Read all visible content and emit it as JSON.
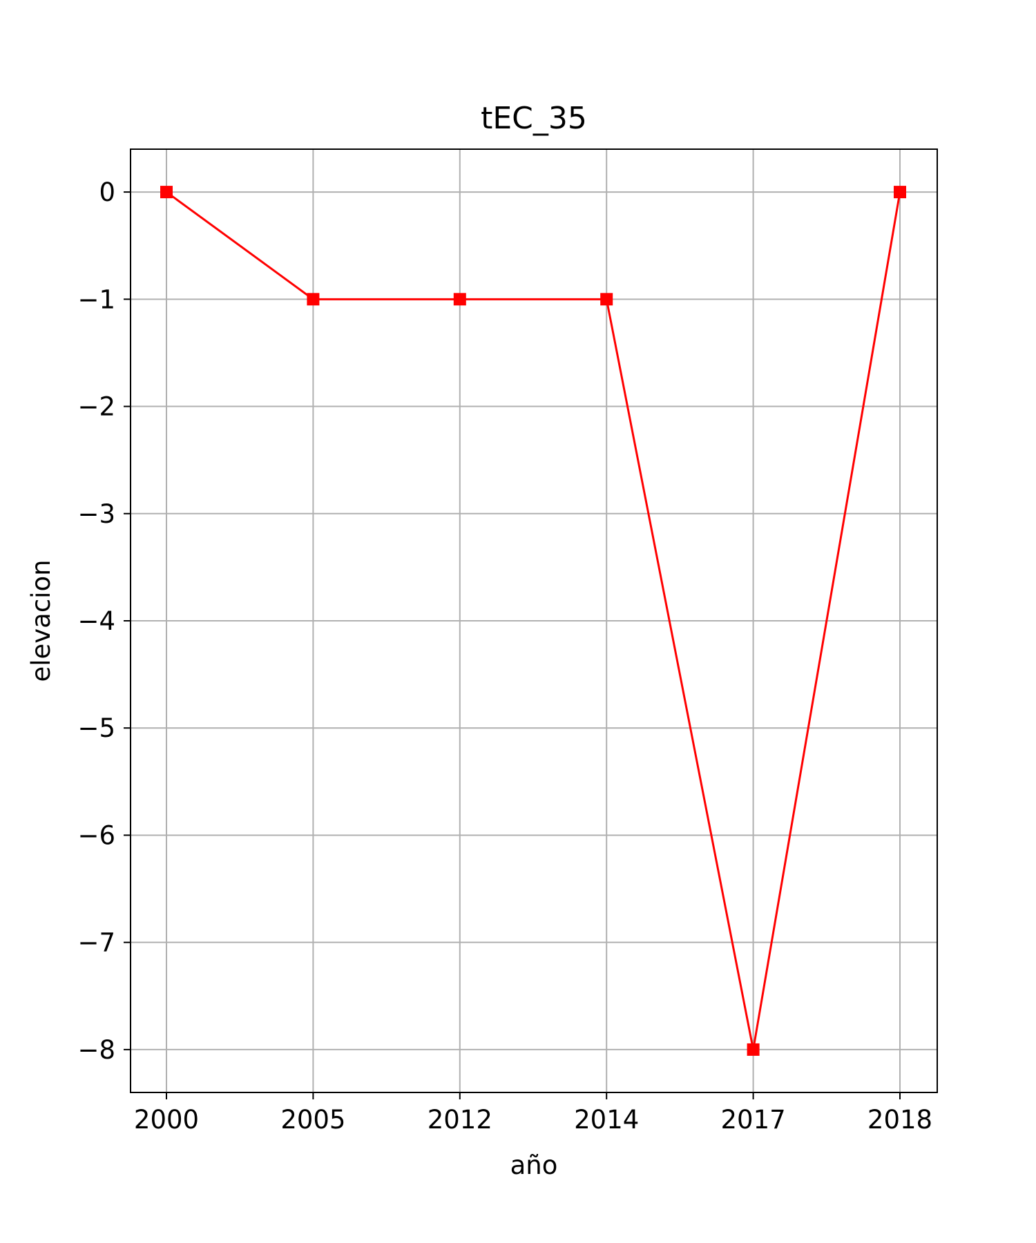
{
  "chart_data": {
    "type": "line",
    "title": "tEC_35",
    "xlabel": "año",
    "ylabel": "elevacion",
    "categories": [
      "2000",
      "2005",
      "2012",
      "2014",
      "2017",
      "2018"
    ],
    "series": [
      {
        "values": [
          0,
          -1,
          -1,
          -1,
          -8,
          0
        ],
        "color": "#ff0000",
        "marker": "square"
      }
    ],
    "yticks": [
      0,
      -1,
      -2,
      -3,
      -4,
      -5,
      -6,
      -7,
      -8
    ],
    "ytick_labels": [
      "0",
      "−1",
      "−2",
      "−3",
      "−4",
      "−5",
      "−6",
      "−7",
      "−8"
    ],
    "ylim": [
      -8.4,
      0.4
    ],
    "grid": true,
    "colors": {
      "grid": "#b0b0b0",
      "axes": "#000000"
    }
  }
}
